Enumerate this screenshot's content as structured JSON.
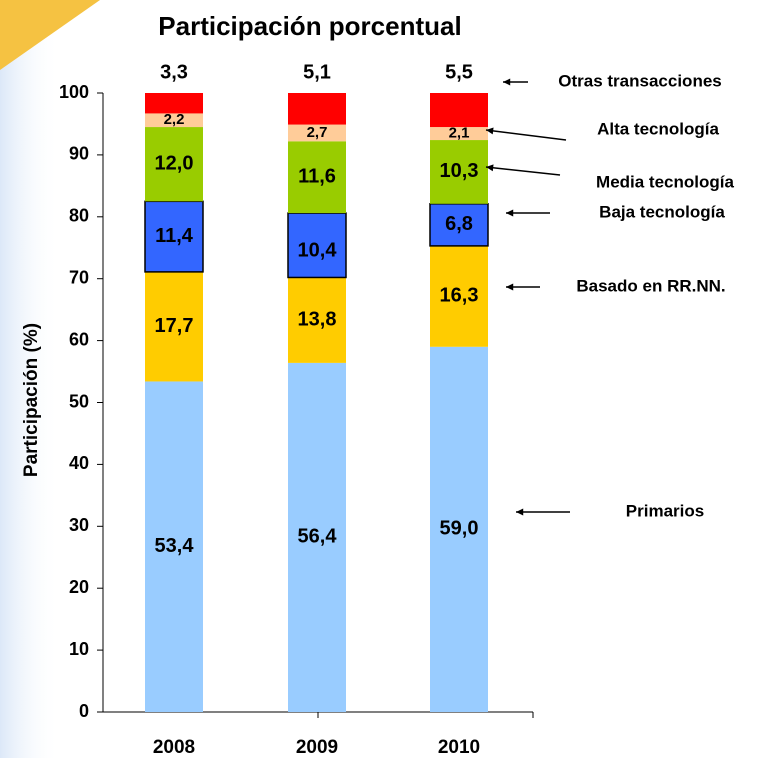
{
  "chart_data": {
    "type": "stacked-bar",
    "title": "Participación porcentual",
    "ylabel": "Participación (%)",
    "categories": [
      "2008",
      "2009",
      "2010"
    ],
    "series": [
      {
        "name": "Primarios",
        "color": "#99ccff",
        "values": [
          53.4,
          56.4,
          59.0
        ],
        "value_labels": [
          "53,4",
          "56,4",
          "59,0"
        ]
      },
      {
        "name": "Basado en RR.NN.",
        "color": "#ffcc00",
        "values": [
          17.7,
          13.8,
          16.3
        ],
        "value_labels": [
          "17,7",
          "13,8",
          "16,3"
        ]
      },
      {
        "name": "Baja tecnología",
        "color": "#3366ff",
        "edgecolor": "#000000",
        "values": [
          11.4,
          10.4,
          6.8
        ],
        "value_labels": [
          "11,4",
          "10,4",
          "6,8"
        ]
      },
      {
        "name": "Media tecnología",
        "color": "#99cc00",
        "values": [
          12.0,
          11.6,
          10.3
        ],
        "value_labels": [
          "12,0",
          "11,6",
          "10,3"
        ]
      },
      {
        "name": "Alta tecnología",
        "color": "#ffcc99",
        "values": [
          2.2,
          2.7,
          2.1
        ],
        "value_labels": [
          "2,2",
          "2,7",
          "2,1"
        ]
      },
      {
        "name": "Otras transacciones",
        "color": "#ff0000",
        "values": [
          3.3,
          5.1,
          5.5
        ],
        "value_labels": [
          "3,3",
          "5,1",
          "5,5"
        ]
      }
    ],
    "ylim": [
      0,
      100
    ],
    "yticks": [
      0,
      10,
      20,
      30,
      40,
      50,
      60,
      70,
      80,
      90,
      100
    ]
  }
}
